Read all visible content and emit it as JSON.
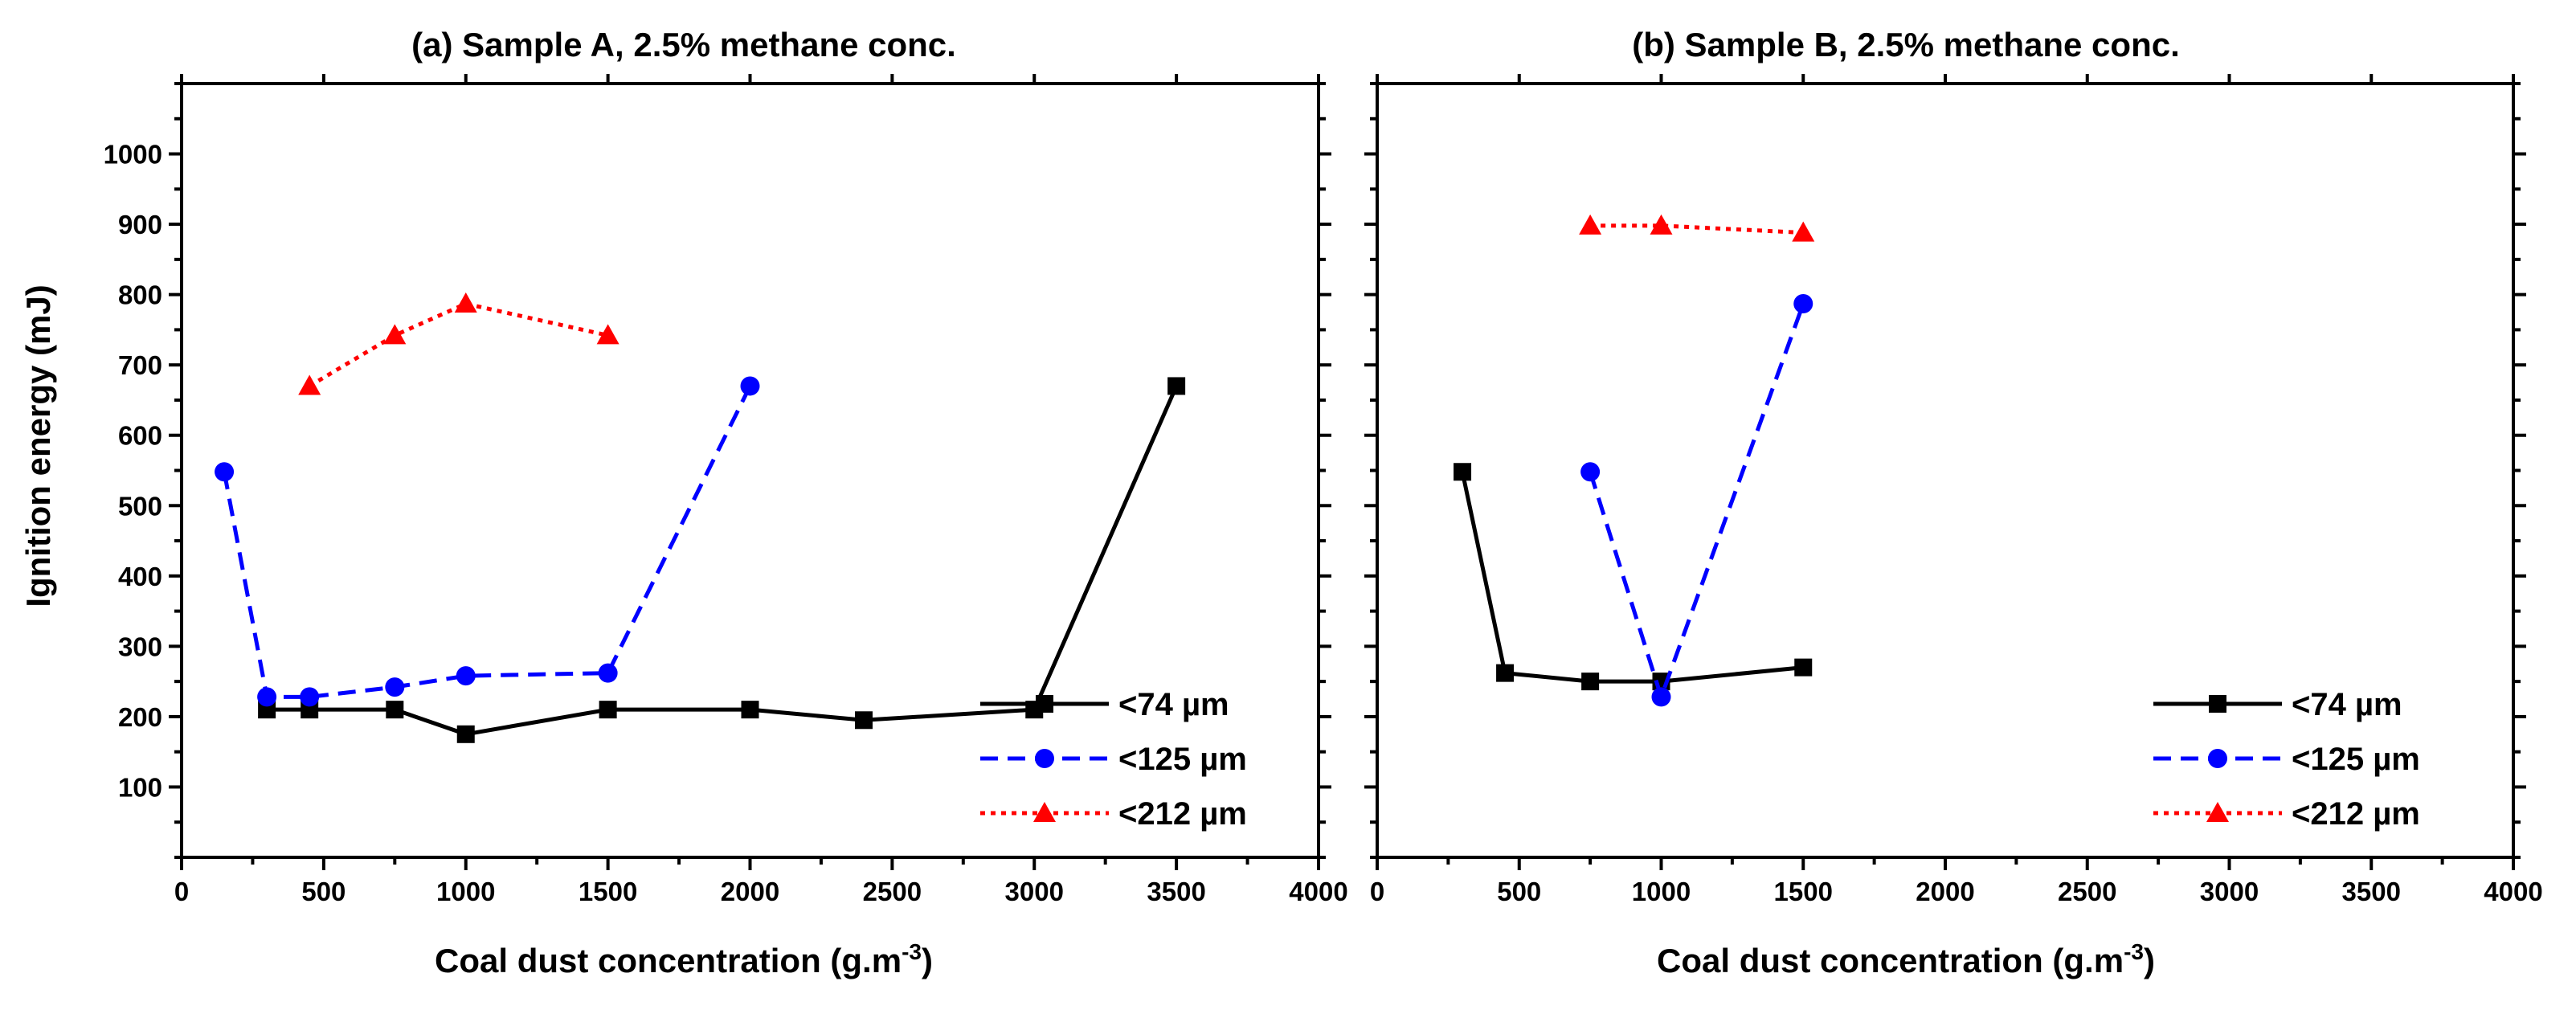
{
  "chart_data": [
    {
      "type": "line",
      "title": "(a) Sample A, 2.5% methane conc.",
      "xlabel": "Coal dust concentration (g.m",
      "xlabel_sup": "-3",
      "xlabel_end": ")",
      "ylabel": "Ignition energy (mJ)",
      "xlim": [
        0,
        4000
      ],
      "ylim": [
        0,
        1100
      ],
      "xticks": [
        0,
        500,
        1000,
        1500,
        2000,
        2500,
        3000,
        3500,
        4000
      ],
      "yticks": [
        100,
        200,
        300,
        400,
        500,
        600,
        700,
        800,
        900,
        1000
      ],
      "grid": false,
      "legend_position": "bottom-right",
      "series": [
        {
          "name": "<74 µm",
          "color": "#000000",
          "dash": "solid",
          "marker": "square",
          "x": [
            300,
            450,
            750,
            1000,
            1500,
            2000,
            2400,
            3000,
            3500
          ],
          "y": [
            210,
            210,
            210,
            175,
            210,
            210,
            195,
            210,
            670
          ]
        },
        {
          "name": "<125 µm",
          "color": "#0000ff",
          "dash": "dashed",
          "marker": "circle",
          "x": [
            150,
            300,
            450,
            750,
            1000,
            1500,
            2000
          ],
          "y": [
            548,
            228,
            228,
            242,
            258,
            262,
            670
          ]
        },
        {
          "name": "<212 µm",
          "color": "#ff0000",
          "dash": "dotted",
          "marker": "triangle",
          "x": [
            450,
            750,
            1000,
            1500
          ],
          "y": [
            670,
            742,
            787,
            742
          ]
        }
      ]
    },
    {
      "type": "line",
      "title": "(b) Sample B, 2.5% methane conc.",
      "xlabel": "Coal dust concentration (g.m",
      "xlabel_sup": "-3",
      "xlabel_end": ")",
      "ylabel": "",
      "xlim": [
        0,
        4000
      ],
      "ylim": [
        0,
        1100
      ],
      "xticks": [
        0,
        500,
        1000,
        1500,
        2000,
        2500,
        3000,
        3500,
        4000
      ],
      "yticks": [
        100,
        200,
        300,
        400,
        500,
        600,
        700,
        800,
        900,
        1000
      ],
      "show_y_tick_labels": false,
      "grid": false,
      "legend_position": "bottom-right",
      "series": [
        {
          "name": "<74 µm",
          "color": "#000000",
          "dash": "solid",
          "marker": "square",
          "x": [
            300,
            450,
            750,
            1000,
            1500
          ],
          "y": [
            548,
            262,
            250,
            250,
            270
          ]
        },
        {
          "name": "<125 µm",
          "color": "#0000ff",
          "dash": "dashed",
          "marker": "circle",
          "x": [
            750,
            1000,
            1500
          ],
          "y": [
            548,
            228,
            787
          ]
        },
        {
          "name": "<212 µm",
          "color": "#ff0000",
          "dash": "dotted",
          "marker": "triangle",
          "x": [
            750,
            1000,
            1500
          ],
          "y": [
            898,
            898,
            888
          ]
        }
      ]
    }
  ]
}
